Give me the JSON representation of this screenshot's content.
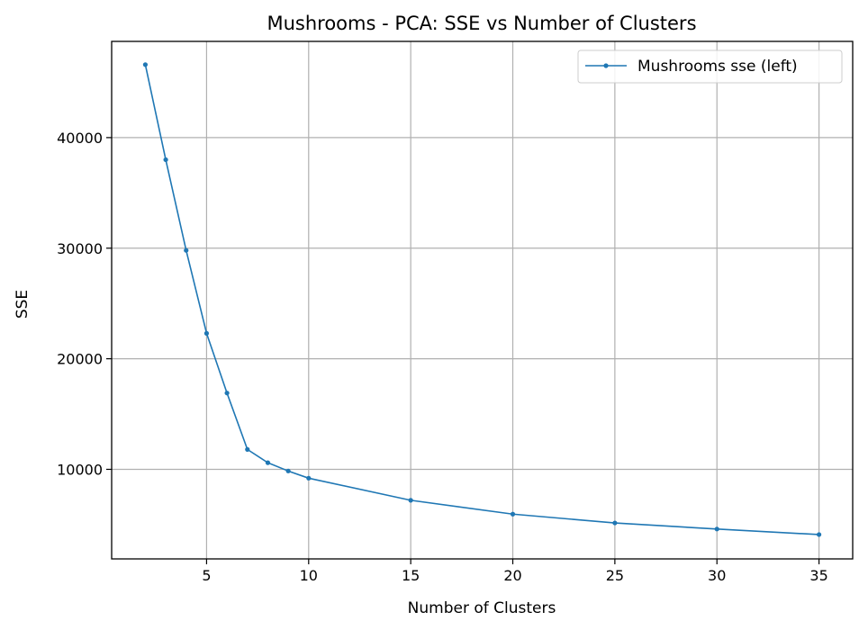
{
  "chart_data": {
    "type": "line",
    "title": "Mushrooms - PCA: SSE vs Number of Clusters",
    "xlabel": "Number of Clusters",
    "ylabel": "SSE",
    "xlim": [
      0.35,
      36.65
    ],
    "ylim": [
      1900,
      48700
    ],
    "xticks": [
      5,
      10,
      15,
      20,
      25,
      30,
      35
    ],
    "yticks": [
      10000,
      20000,
      30000,
      40000
    ],
    "grid": true,
    "legend_position": "top-right",
    "series": [
      {
        "name": "Mushrooms sse (left)",
        "color": "#1f77b4",
        "marker": "dot",
        "x": [
          2,
          3,
          4,
          5,
          6,
          7,
          8,
          9,
          10,
          15,
          20,
          25,
          30,
          35
        ],
        "y": [
          46600,
          38000,
          29800,
          22300,
          16900,
          11800,
          10600,
          9850,
          9200,
          7200,
          5950,
          5150,
          4600,
          4100
        ]
      }
    ]
  }
}
